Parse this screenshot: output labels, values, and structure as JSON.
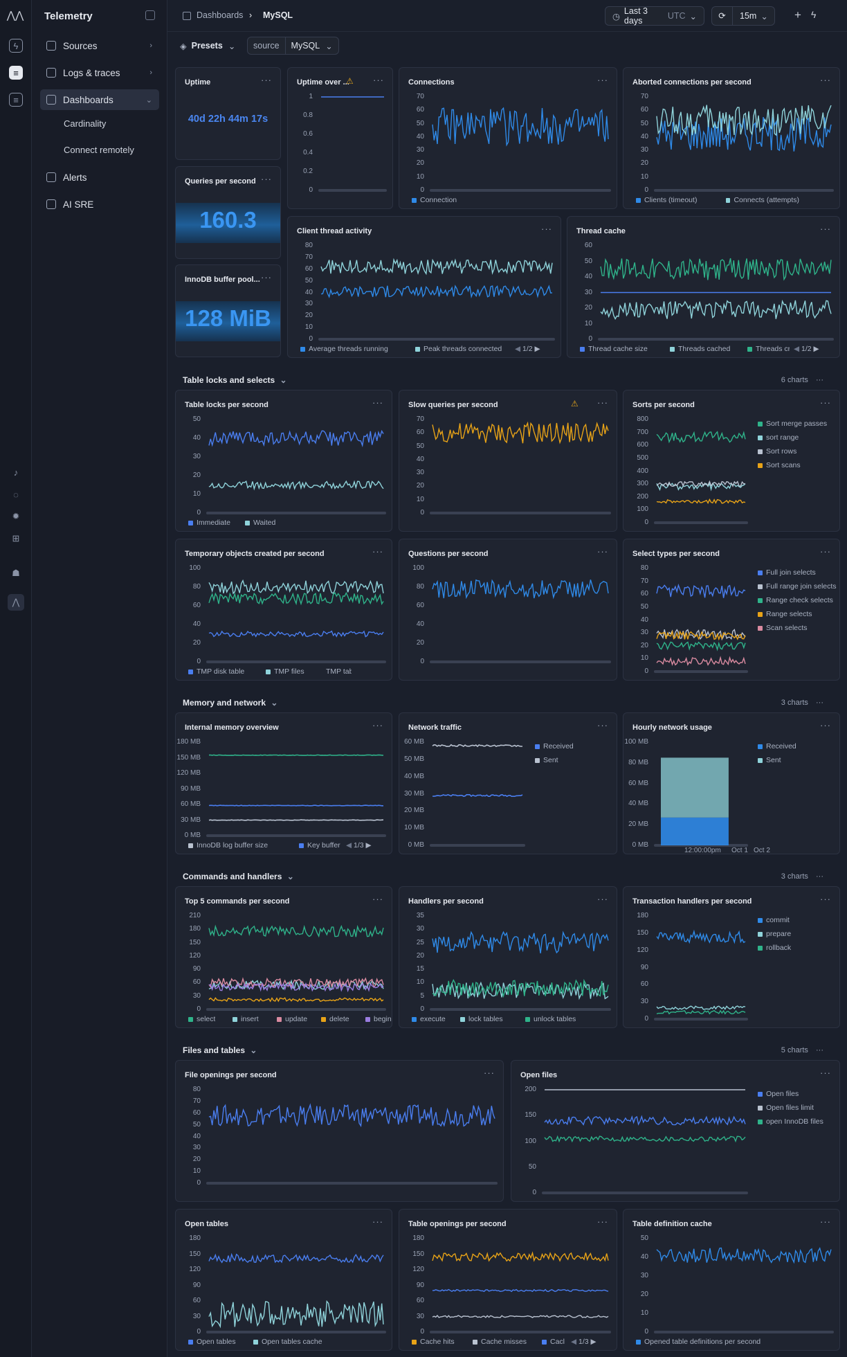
{
  "app": {
    "title": "Telemetry"
  },
  "sidebar": {
    "items": [
      {
        "label": "Sources",
        "icon": "cube-icon",
        "top": 51,
        "chev": "›"
      },
      {
        "label": "Logs & traces",
        "icon": "terminal-icon",
        "top": 90,
        "chev": "›"
      },
      {
        "label": "Dashboards",
        "icon": "grid-icon",
        "top": 129,
        "chev": "⌄",
        "active": true
      },
      {
        "label": "Alerts",
        "icon": "warning-icon",
        "top": 241
      },
      {
        "label": "AI SRE",
        "icon": "sparkle-doc-icon",
        "top": 280
      }
    ],
    "subitems": [
      {
        "label": "Cardinality",
        "top": 171
      },
      {
        "label": "Connect remotely",
        "top": 209
      }
    ]
  },
  "header": {
    "crumb_root": "Dashboards",
    "crumb_current": "MySQL",
    "timerange": "Last 3 days",
    "tz": "UTC",
    "refresh": "15m",
    "presets": "Presets",
    "filter_key": "source",
    "filter_val": "MySQL"
  },
  "sections": [
    {
      "label": "Table locks and selects",
      "count": "6 charts",
      "top": 542
    },
    {
      "label": "Memory and network",
      "count": "3 charts",
      "top": 1008
    },
    {
      "label": "Commands and handlers",
      "count": "3 charts",
      "top": 1259
    },
    {
      "label": "Files and tables",
      "count": "5 charts",
      "top": 1510
    }
  ],
  "stats": {
    "uptime": "40d 22h 44m 17s",
    "qps": "160.3",
    "innodb": "128 MiB"
  },
  "panels": [
    {
      "id": "uptime",
      "title": "Uptime"
    },
    {
      "id": "qps",
      "title": "Queries per second"
    },
    {
      "id": "innodb",
      "title": "InnoDB buffer pool..."
    },
    {
      "id": "uptimeover",
      "title": "Uptime over ..."
    },
    {
      "id": "conn",
      "title": "Connections"
    },
    {
      "id": "aborted",
      "title": "Aborted connections per second"
    },
    {
      "id": "client",
      "title": "Client thread activity"
    },
    {
      "id": "thread",
      "title": "Thread cache"
    },
    {
      "id": "locks",
      "title": "Table locks per second"
    },
    {
      "id": "slow",
      "title": "Slow queries per second"
    },
    {
      "id": "sorts",
      "title": "Sorts per second"
    },
    {
      "id": "tmp",
      "title": "Temporary objects created per second"
    },
    {
      "id": "questions",
      "title": "Questions per second"
    },
    {
      "id": "select",
      "title": "Select types per second"
    },
    {
      "id": "mem",
      "title": "Internal memory overview"
    },
    {
      "id": "net",
      "title": "Network traffic"
    },
    {
      "id": "hourly",
      "title": "Hourly network usage"
    },
    {
      "id": "top5",
      "title": "Top 5 commands per second"
    },
    {
      "id": "handlers",
      "title": "Handlers per second"
    },
    {
      "id": "txn",
      "title": "Transaction handlers per second"
    },
    {
      "id": "fileopen",
      "title": "File openings per second"
    },
    {
      "id": "openfiles",
      "title": "Open files"
    },
    {
      "id": "opentables",
      "title": "Open tables"
    },
    {
      "id": "tableopen",
      "title": "Table openings per second"
    },
    {
      "id": "tabledef",
      "title": "Table definition cache"
    }
  ],
  "colors": {
    "blue": "#2f8ae8",
    "royal": "#4a7ef0",
    "teal": "#8fd3da",
    "green": "#2fb38a",
    "orange": "#e8a317",
    "pink": "#d98aa0",
    "purple": "#9a7de0",
    "gray": "#b9c2d0"
  },
  "chart_data": [
    {
      "id": "uptimeover",
      "type": "line",
      "yticks": [
        "1",
        "0.8",
        "0.6",
        "0.4",
        "0.2",
        "0"
      ],
      "series": [
        {
          "name": "",
          "level": 1,
          "noise": 0,
          "color": "royal"
        }
      ]
    },
    {
      "id": "conn",
      "type": "line",
      "yticks": [
        "70",
        "60",
        "50",
        "40",
        "30",
        "20",
        "10",
        "0"
      ],
      "series": [
        {
          "name": "Connection",
          "level": 48,
          "noise": 14,
          "color": "blue"
        }
      ]
    },
    {
      "id": "aborted",
      "type": "line",
      "yticks": [
        "70",
        "60",
        "50",
        "40",
        "30",
        "20",
        "10",
        "0"
      ],
      "series": [
        {
          "name": "Clients (timeout)",
          "level": 42,
          "noise": 13,
          "color": "blue"
        },
        {
          "name": "Connects (attempts)",
          "level": 52,
          "noise": 12,
          "color": "teal"
        }
      ]
    },
    {
      "id": "client",
      "type": "line",
      "yticks": [
        "80",
        "70",
        "60",
        "50",
        "40",
        "30",
        "20",
        "10",
        "0"
      ],
      "pager": "1/2",
      "series": [
        {
          "name": "Average threads running",
          "level": 41,
          "noise": 5,
          "color": "blue"
        },
        {
          "name": "Peak threads connected",
          "level": 62,
          "noise": 6,
          "color": "teal"
        }
      ]
    },
    {
      "id": "thread",
      "type": "line",
      "yticks": [
        "60",
        "50",
        "40",
        "30",
        "20",
        "10",
        "0"
      ],
      "pager": "1/2",
      "series": [
        {
          "name": "Thread cache size",
          "level": 30,
          "noise": 0,
          "color": "royal"
        },
        {
          "name": "Threads cached",
          "level": 19,
          "noise": 6,
          "color": "teal"
        },
        {
          "name": "Threads cr",
          "level": 45,
          "noise": 7,
          "color": "green"
        }
      ]
    },
    {
      "id": "locks",
      "type": "line",
      "yticks": [
        "50",
        "40",
        "30",
        "20",
        "10",
        "0"
      ],
      "series": [
        {
          "name": "Immediate",
          "level": 40,
          "noise": 4,
          "color": "royal"
        },
        {
          "name": "Waited",
          "level": 15,
          "noise": 2,
          "color": "teal"
        }
      ]
    },
    {
      "id": "slow",
      "type": "line",
      "yticks": [
        "70",
        "60",
        "50",
        "40",
        "30",
        "20",
        "10",
        "0"
      ],
      "series": [
        {
          "name": "",
          "level": 60,
          "noise": 8,
          "color": "orange"
        }
      ]
    },
    {
      "id": "sorts",
      "type": "line",
      "yticks": [
        "800",
        "700",
        "600",
        "500",
        "400",
        "300",
        "200",
        "100",
        "0"
      ],
      "legend": "right",
      "series": [
        {
          "name": "Sort merge passes",
          "level": 665,
          "noise": 40,
          "color": "green"
        },
        {
          "name": "sort range",
          "level": 280,
          "noise": 25,
          "color": "teal"
        },
        {
          "name": "Sort rows",
          "level": 300,
          "noise": 20,
          "color": "gray"
        },
        {
          "name": "Sort scans",
          "level": 165,
          "noise": 15,
          "color": "orange"
        }
      ]
    },
    {
      "id": "tmp",
      "type": "line",
      "yticks": [
        "100",
        "80",
        "60",
        "40",
        "20",
        "0"
      ],
      "series": [
        {
          "name": "TMP disk table",
          "level": 30,
          "noise": 3,
          "color": "royal"
        },
        {
          "name": "TMP files",
          "level": 80,
          "noise": 7,
          "color": "teal"
        },
        {
          "name": "TMP tables",
          "level": 68,
          "noise": 6,
          "color": "green"
        }
      ]
    },
    {
      "id": "questions",
      "type": "line",
      "yticks": [
        "100",
        "80",
        "60",
        "40",
        "20",
        "0"
      ],
      "series": [
        {
          "name": "",
          "level": 78,
          "noise": 10,
          "color": "blue"
        }
      ]
    },
    {
      "id": "select",
      "type": "line",
      "yticks": [
        "80",
        "70",
        "60",
        "50",
        "40",
        "30",
        "20",
        "10",
        "0"
      ],
      "legend": "right",
      "series": [
        {
          "name": "Full join selects",
          "level": 62,
          "noise": 5,
          "color": "royal"
        },
        {
          "name": "Full range join selects",
          "level": 29,
          "noise": 4,
          "color": "gray"
        },
        {
          "name": "Range check selects",
          "level": 20,
          "noise": 3,
          "color": "green"
        },
        {
          "name": "Range selects",
          "level": 28,
          "noise": 3,
          "color": "orange"
        },
        {
          "name": "Scan selects",
          "level": 8,
          "noise": 3,
          "color": "pink"
        }
      ]
    },
    {
      "id": "mem",
      "type": "line",
      "yticks": [
        "180 MB",
        "150 MB",
        "120 MB",
        "90 MB",
        "60 MB",
        "30 MB",
        "0 MB"
      ],
      "pager": "1/3",
      "series": [
        {
          "name": "InnoDB log buffer size",
          "level": 30,
          "noise": 0.5,
          "color": "gray"
        },
        {
          "name": "Key buffer s",
          "level": 58,
          "noise": 0.5,
          "color": "royal"
        },
        {
          "name": "",
          "level": 155,
          "noise": 0.5,
          "color": "green"
        }
      ]
    },
    {
      "id": "net",
      "type": "line",
      "yticks": [
        "60 MB",
        "50 MB",
        "40 MB",
        "30 MB",
        "20 MB",
        "10 MB",
        "0 MB"
      ],
      "legend": "right",
      "series": [
        {
          "name": "Received",
          "level": 29,
          "noise": 0.5,
          "color": "royal"
        },
        {
          "name": "Sent",
          "level": 58,
          "noise": 0.5,
          "color": "gray"
        }
      ]
    },
    {
      "id": "hourly",
      "type": "bar",
      "yticks": [
        "100 MB",
        "80 MB",
        "60 MB",
        "40 MB",
        "20 MB",
        "0 MB"
      ],
      "xticks": [
        "12:00:00pm",
        "Oct 1",
        "Oct 2"
      ],
      "legend": "right",
      "series": [
        {
          "name": "Received",
          "value": 27,
          "color": "blue"
        },
        {
          "name": "Sent",
          "value": 58,
          "color": "teal"
        }
      ]
    },
    {
      "id": "top5",
      "type": "line",
      "yticks": [
        "210",
        "180",
        "150",
        "120",
        "90",
        "60",
        "30",
        "0"
      ],
      "series": [
        {
          "name": "select",
          "level": 175,
          "noise": 12,
          "color": "green"
        },
        {
          "name": "insert",
          "level": 55,
          "noise": 10,
          "color": "teal"
        },
        {
          "name": "update",
          "level": 60,
          "noise": 10,
          "color": "pink"
        },
        {
          "name": "delete",
          "level": 22,
          "noise": 4,
          "color": "orange"
        },
        {
          "name": "begin",
          "level": 50,
          "noise": 8,
          "color": "purple"
        }
      ]
    },
    {
      "id": "handlers",
      "type": "line",
      "yticks": [
        "35",
        "30",
        "25",
        "20",
        "15",
        "10",
        "5",
        "0"
      ],
      "series": [
        {
          "name": "execute",
          "level": 25,
          "noise": 4,
          "color": "blue"
        },
        {
          "name": "lock tables",
          "level": 7,
          "noise": 3,
          "color": "teal"
        },
        {
          "name": "unlock tables",
          "level": 8,
          "noise": 3,
          "color": "green"
        }
      ]
    },
    {
      "id": "txn",
      "type": "line",
      "yticks": [
        "180",
        "150",
        "120",
        "90",
        "60",
        "30",
        "0"
      ],
      "legend": "right",
      "series": [
        {
          "name": "commit",
          "level": 143,
          "noise": 10,
          "color": "blue"
        },
        {
          "name": "prepare",
          "level": 20,
          "noise": 3,
          "color": "teal"
        },
        {
          "name": "rollback",
          "level": 12,
          "noise": 3,
          "color": "green"
        }
      ]
    },
    {
      "id": "fileopen",
      "type": "line",
      "yticks": [
        "80",
        "70",
        "60",
        "50",
        "40",
        "30",
        "20",
        "10",
        "0"
      ],
      "series": [
        {
          "name": "",
          "level": 58,
          "noise": 9,
          "color": "royal"
        }
      ]
    },
    {
      "id": "openfiles",
      "type": "line",
      "yticks": [
        "200",
        "150",
        "100",
        "50",
        "0"
      ],
      "legend": "right",
      "series": [
        {
          "name": "Open files",
          "level": 140,
          "noise": 8,
          "color": "royal"
        },
        {
          "name": "Open files limit",
          "level": 200,
          "noise": 0,
          "color": "gray"
        },
        {
          "name": "open InnoDB files",
          "level": 105,
          "noise": 5,
          "color": "green"
        }
      ]
    },
    {
      "id": "opentables",
      "type": "line",
      "yticks": [
        "180",
        "150",
        "120",
        "90",
        "60",
        "30",
        "0"
      ],
      "series": [
        {
          "name": "Open tables",
          "level": 142,
          "noise": 8,
          "color": "royal"
        },
        {
          "name": "Open tables cache",
          "level": 35,
          "noise": 25,
          "color": "teal"
        }
      ]
    },
    {
      "id": "tableopen",
      "type": "line",
      "yticks": [
        "180",
        "150",
        "120",
        "90",
        "60",
        "30",
        "0"
      ],
      "pager": "1/3",
      "series": [
        {
          "name": "Cache hits",
          "level": 145,
          "noise": 8,
          "color": "orange"
        },
        {
          "name": "Cache misses",
          "level": 30,
          "noise": 2,
          "color": "gray"
        },
        {
          "name": "Cacl",
          "level": 80,
          "noise": 2,
          "color": "royal"
        }
      ]
    },
    {
      "id": "tabledef",
      "type": "line",
      "yticks": [
        "50",
        "40",
        "30",
        "20",
        "10",
        "0"
      ],
      "series": [
        {
          "name": "Opened table definitions per second",
          "level": 41,
          "noise": 4,
          "color": "blue"
        }
      ]
    }
  ]
}
